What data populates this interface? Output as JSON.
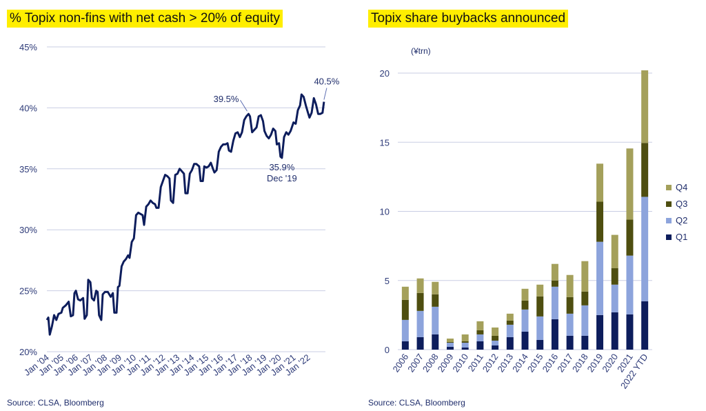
{
  "left_chart": {
    "title": "% Topix non-fins with net cash > 20% of equity",
    "source": "Source: CLSA, Bloomberg"
  },
  "right_chart": {
    "title": "Topix share buybacks announced",
    "source": "Source: CLSA, Bloomberg"
  },
  "chart_data": [
    {
      "type": "line",
      "title": "% Topix non-fins with net cash > 20% of equity",
      "xlabel": "",
      "ylabel": "",
      "ylim": [
        20,
        45
      ],
      "yticks": [
        "20%",
        "25%",
        "30%",
        "35%",
        "40%",
        "45%"
      ],
      "xticks": [
        "Jan '04",
        "Jan '05",
        "Jan '06",
        "Jan '07",
        "Jan '08",
        "Jan '09",
        "Jan '10",
        "Jan '11",
        "Jan '12",
        "Jan '13",
        "Jan '14",
        "Jan '15",
        "Jan '16",
        "Jan '17",
        "Jan '18",
        "Jan '19",
        "Jan '20",
        "Jan '21",
        "Jan '22"
      ],
      "grid": true,
      "series": [
        {
          "points": [
            [
              2004.0,
              22.6
            ],
            [
              2004.1,
              22.8
            ],
            [
              2004.2,
              21.4
            ],
            [
              2004.35,
              22.1
            ],
            [
              2004.5,
              23.0
            ],
            [
              2004.65,
              22.6
            ],
            [
              2004.8,
              23.1
            ],
            [
              2005.0,
              23.2
            ],
            [
              2005.1,
              23.6
            ],
            [
              2005.3,
              23.8
            ],
            [
              2005.5,
              24.1
            ],
            [
              2005.65,
              22.9
            ],
            [
              2005.8,
              23.0
            ],
            [
              2005.9,
              24.8
            ],
            [
              2006.0,
              25.0
            ],
            [
              2006.15,
              24.3
            ],
            [
              2006.3,
              24.2
            ],
            [
              2006.5,
              24.4
            ],
            [
              2006.6,
              22.7
            ],
            [
              2006.75,
              23.0
            ],
            [
              2006.85,
              25.9
            ],
            [
              2007.0,
              25.7
            ],
            [
              2007.1,
              24.4
            ],
            [
              2007.25,
              24.2
            ],
            [
              2007.4,
              25.0
            ],
            [
              2007.5,
              24.9
            ],
            [
              2007.6,
              23.0
            ],
            [
              2007.75,
              22.6
            ],
            [
              2007.85,
              24.7
            ],
            [
              2008.0,
              24.9
            ],
            [
              2008.2,
              24.9
            ],
            [
              2008.4,
              24.5
            ],
            [
              2008.55,
              24.8
            ],
            [
              2008.65,
              23.2
            ],
            [
              2008.8,
              23.2
            ],
            [
              2008.9,
              25.3
            ],
            [
              2009.0,
              25.4
            ],
            [
              2009.15,
              27.0
            ],
            [
              2009.3,
              27.4
            ],
            [
              2009.45,
              27.6
            ],
            [
              2009.6,
              27.9
            ],
            [
              2009.7,
              27.7
            ],
            [
              2009.85,
              29.0
            ],
            [
              2010.0,
              29.3
            ],
            [
              2010.15,
              31.2
            ],
            [
              2010.3,
              31.4
            ],
            [
              2010.45,
              31.3
            ],
            [
              2010.6,
              31.2
            ],
            [
              2010.7,
              30.4
            ],
            [
              2010.85,
              31.9
            ],
            [
              2011.0,
              32.1
            ],
            [
              2011.15,
              32.4
            ],
            [
              2011.3,
              32.2
            ],
            [
              2011.45,
              32.1
            ],
            [
              2011.55,
              31.8
            ],
            [
              2011.7,
              31.8
            ],
            [
              2011.85,
              33.5
            ],
            [
              2012.0,
              34.0
            ],
            [
              2012.15,
              34.5
            ],
            [
              2012.3,
              34.4
            ],
            [
              2012.45,
              34.2
            ],
            [
              2012.55,
              32.4
            ],
            [
              2012.7,
              32.2
            ],
            [
              2012.85,
              34.5
            ],
            [
              2013.0,
              34.6
            ],
            [
              2013.15,
              35.0
            ],
            [
              2013.3,
              34.8
            ],
            [
              2013.45,
              34.6
            ],
            [
              2013.55,
              33.0
            ],
            [
              2013.7,
              33.0
            ],
            [
              2013.85,
              34.6
            ],
            [
              2014.0,
              34.9
            ],
            [
              2014.15,
              35.4
            ],
            [
              2014.3,
              35.4
            ],
            [
              2014.5,
              35.2
            ],
            [
              2014.6,
              34.0
            ],
            [
              2014.75,
              34.0
            ],
            [
              2014.85,
              35.2
            ],
            [
              2015.0,
              35.1
            ],
            [
              2015.15,
              35.2
            ],
            [
              2015.3,
              35.5
            ],
            [
              2015.45,
              35.0
            ],
            [
              2015.55,
              34.7
            ],
            [
              2015.7,
              34.9
            ],
            [
              2015.85,
              36.4
            ],
            [
              2016.0,
              36.8
            ],
            [
              2016.15,
              37.0
            ],
            [
              2016.3,
              37.0
            ],
            [
              2016.45,
              37.1
            ],
            [
              2016.55,
              36.5
            ],
            [
              2016.7,
              36.4
            ],
            [
              2016.85,
              37.3
            ],
            [
              2017.0,
              37.9
            ],
            [
              2017.15,
              38.0
            ],
            [
              2017.3,
              37.6
            ],
            [
              2017.45,
              38.0
            ],
            [
              2017.6,
              39.0
            ],
            [
              2017.75,
              39.3
            ],
            [
              2017.9,
              39.5
            ],
            [
              2018.0,
              39.3
            ],
            [
              2018.15,
              38.0
            ],
            [
              2018.3,
              38.2
            ],
            [
              2018.45,
              38.4
            ],
            [
              2018.6,
              39.3
            ],
            [
              2018.75,
              39.4
            ],
            [
              2018.9,
              38.9
            ],
            [
              2019.0,
              38.1
            ],
            [
              2019.15,
              37.7
            ],
            [
              2019.3,
              37.5
            ],
            [
              2019.45,
              37.8
            ],
            [
              2019.6,
              38.3
            ],
            [
              2019.75,
              38.1
            ],
            [
              2019.85,
              37.0
            ],
            [
              2020.0,
              37.1
            ],
            [
              2020.1,
              36.0
            ],
            [
              2020.2,
              35.9
            ],
            [
              2020.35,
              37.6
            ],
            [
              2020.5,
              38.0
            ],
            [
              2020.65,
              37.8
            ],
            [
              2020.8,
              38.1
            ],
            [
              2021.0,
              38.8
            ],
            [
              2021.15,
              38.7
            ],
            [
              2021.3,
              39.8
            ],
            [
              2021.45,
              40.2
            ],
            [
              2021.55,
              41.1
            ],
            [
              2021.7,
              40.9
            ],
            [
              2021.85,
              40.2
            ],
            [
              2022.0,
              39.6
            ],
            [
              2022.1,
              39.2
            ],
            [
              2022.25,
              39.6
            ],
            [
              2022.4,
              40.8
            ],
            [
              2022.55,
              40.3
            ],
            [
              2022.7,
              39.5
            ],
            [
              2022.85,
              39.5
            ],
            [
              2023.0,
              39.6
            ],
            [
              2023.1,
              40.5
            ]
          ]
        }
      ],
      "annotations": [
        {
          "label": "39.5%",
          "x": 2017.9,
          "y": 39.5
        },
        {
          "label": "40.5%",
          "x": 2023.1,
          "y": 40.5
        },
        {
          "label": "35.9%",
          "x": 2020.2,
          "y": 35.9
        },
        {
          "label": "Dec '19",
          "x": 2020.2,
          "y": 35.9
        }
      ]
    },
    {
      "type": "bar",
      "stacked": true,
      "title": "Topix share buybacks announced",
      "unit_label": "(¥trn)",
      "ylim": [
        0,
        20
      ],
      "yticks": [
        "0",
        "5",
        "10",
        "15",
        "20"
      ],
      "grid": true,
      "legend_position": "right",
      "categories": [
        "2006",
        "2007",
        "2008",
        "2009",
        "2010",
        "2011",
        "2012",
        "2013",
        "2014",
        "2015",
        "2016",
        "2017",
        "2018",
        "2019",
        "2020",
        "2021",
        "2022 YTD"
      ],
      "series": [
        {
          "name": "Q1",
          "color": "#0d1d5c",
          "values": [
            0.6,
            0.9,
            1.1,
            0.2,
            0.15,
            0.6,
            0.3,
            0.9,
            1.3,
            0.7,
            2.2,
            1.0,
            1.0,
            2.5,
            2.7,
            2.55,
            3.5
          ]
        },
        {
          "name": "Q2",
          "color": "#8da4dc",
          "values": [
            1.55,
            1.9,
            2.0,
            0.3,
            0.35,
            0.5,
            0.35,
            0.9,
            1.6,
            1.7,
            2.35,
            1.6,
            2.2,
            5.3,
            2.0,
            4.25,
            7.55
          ]
        },
        {
          "name": "Q3",
          "color": "#4e4e10",
          "values": [
            1.45,
            1.3,
            0.9,
            0.05,
            0.1,
            0.3,
            0.35,
            0.3,
            0.65,
            1.45,
            0.45,
            1.2,
            1.0,
            2.9,
            1.2,
            2.6,
            3.9
          ]
        },
        {
          "name": "Q4",
          "color": "#a4a05b",
          "values": [
            0.95,
            1.05,
            0.9,
            0.25,
            0.5,
            0.65,
            0.6,
            0.5,
            0.85,
            0.85,
            1.2,
            1.6,
            2.2,
            2.75,
            2.4,
            5.15,
            5.25
          ]
        }
      ]
    }
  ],
  "colors": {
    "line": "#0d1d5c",
    "grid": "#c9cde3",
    "title_highlight": "#ffee00"
  }
}
